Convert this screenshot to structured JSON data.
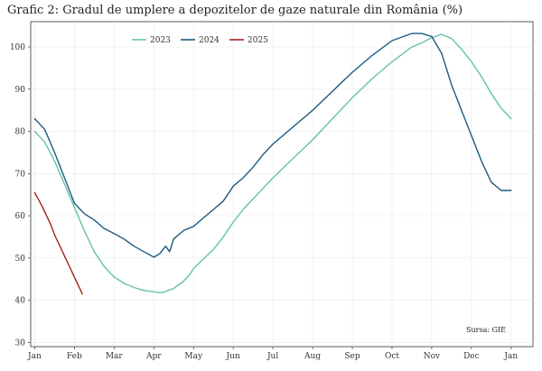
{
  "chart_data": {
    "type": "line",
    "title": "Grafic 2: Gradul de umplere a depozitelor de gaze naturale din România (%)",
    "source": "Sursa: GIE",
    "xlabel": "",
    "ylabel": "",
    "x_ticks": [
      "Jan",
      "Feb",
      "Mar",
      "Apr",
      "May",
      "Jun",
      "Jul",
      "Aug",
      "Sep",
      "Oct",
      "Nov",
      "Dec",
      "Jan"
    ],
    "xlim": [
      -0.1,
      12.55
    ],
    "y_ticks": [
      30,
      40,
      50,
      60,
      70,
      80,
      90,
      100
    ],
    "ylim": [
      29,
      106
    ],
    "grid": true,
    "legend_position": "top-left",
    "series": [
      {
        "name": "2023",
        "color": "#66c2a5",
        "x": [
          0,
          0.25,
          0.5,
          0.75,
          1.0,
          1.25,
          1.5,
          1.75,
          2.0,
          2.25,
          2.5,
          2.75,
          3.0,
          3.1,
          3.25,
          3.5,
          3.75,
          3.9,
          4.0,
          4.25,
          4.5,
          4.75,
          5.0,
          5.25,
          5.5,
          5.75,
          6.0,
          6.5,
          7.0,
          7.5,
          8.0,
          8.5,
          9.0,
          9.5,
          9.75,
          10.0,
          10.25,
          10.5,
          10.75,
          11.0,
          11.25,
          11.5,
          11.75,
          12.0
        ],
        "values": [
          80,
          77.5,
          73,
          67.5,
          62,
          56.5,
          51.5,
          48,
          45.5,
          44,
          43,
          42.3,
          42,
          41.8,
          41.9,
          42.8,
          44.5,
          46,
          47.5,
          49.8,
          52,
          55,
          58.5,
          61.5,
          64,
          66.5,
          69,
          73.5,
          78,
          83,
          88,
          92.5,
          96.5,
          100,
          101,
          102.2,
          103,
          102,
          99.5,
          96.5,
          93,
          89,
          85.5,
          83
        ]
      },
      {
        "name": "2024",
        "color": "#1d5a80",
        "x": [
          0,
          0.25,
          0.5,
          0.75,
          1.0,
          1.25,
          1.5,
          1.75,
          2.0,
          2.25,
          2.5,
          2.75,
          3.0,
          3.15,
          3.3,
          3.4,
          3.5,
          3.75,
          4.0,
          4.25,
          4.5,
          4.75,
          5.0,
          5.25,
          5.5,
          5.75,
          6.0,
          6.5,
          7.0,
          7.5,
          8.0,
          8.5,
          9.0,
          9.5,
          9.75,
          10.0,
          10.25,
          10.5,
          10.75,
          11.0,
          11.25,
          11.5,
          11.75,
          12.0
        ],
        "values": [
          83,
          80.5,
          75,
          69,
          63,
          60.5,
          59,
          57,
          55.8,
          54.5,
          52.8,
          51.5,
          50.2,
          51,
          52.8,
          51.5,
          54.5,
          56.5,
          57.5,
          59.5,
          61.5,
          63.5,
          67,
          69,
          71.5,
          74.5,
          77,
          81,
          85,
          89.5,
          94,
          98,
          101.5,
          103.2,
          103.2,
          102.5,
          98.5,
          91,
          85,
          79,
          73,
          68,
          66,
          66
        ]
      },
      {
        "name": "2025",
        "color": "#a3221c",
        "x": [
          0,
          0.1,
          0.2,
          0.3,
          0.4,
          0.5,
          0.6,
          0.7,
          0.8,
          0.9,
          1.0,
          1.1,
          1.2
        ],
        "values": [
          65.5,
          63.8,
          62,
          60,
          58,
          55.5,
          53.5,
          51.5,
          49.5,
          47.5,
          45.5,
          43.5,
          41.5
        ]
      }
    ]
  }
}
